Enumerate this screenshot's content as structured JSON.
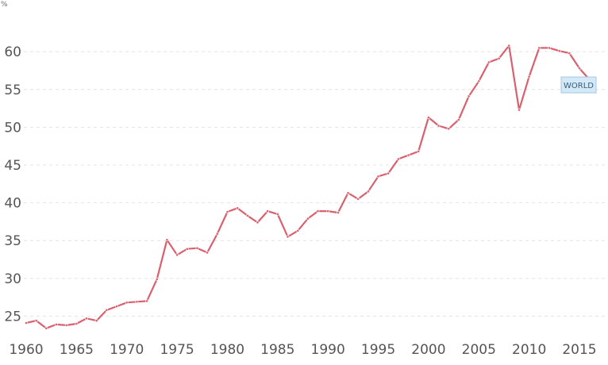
{
  "chart_data": {
    "type": "line",
    "title": "",
    "xlabel": "",
    "ylabel": "%",
    "xlim": [
      1960,
      2017
    ],
    "ylim": [
      22,
      66
    ],
    "grid": true,
    "x_ticks": [
      1960,
      1965,
      1970,
      1975,
      1980,
      1985,
      1990,
      1995,
      2000,
      2005,
      2010,
      2015
    ],
    "y_ticks": [
      25,
      30,
      35,
      40,
      45,
      50,
      55,
      60
    ],
    "x": [
      1960,
      1961,
      1962,
      1963,
      1964,
      1965,
      1966,
      1967,
      1968,
      1969,
      1970,
      1971,
      1972,
      1973,
      1974,
      1975,
      1976,
      1977,
      1978,
      1979,
      1980,
      1981,
      1982,
      1983,
      1984,
      1985,
      1986,
      1987,
      1988,
      1989,
      1990,
      1991,
      1992,
      1993,
      1994,
      1995,
      1996,
      1997,
      1998,
      1999,
      2000,
      2001,
      2002,
      2003,
      2004,
      2005,
      2006,
      2007,
      2008,
      2009,
      2010,
      2011,
      2012,
      2013,
      2014,
      2015,
      2016
    ],
    "series": [
      {
        "name": "WORLD",
        "color": "#d9606e",
        "values": [
          24.1,
          24.4,
          23.4,
          23.9,
          23.8,
          24.0,
          24.7,
          24.4,
          25.8,
          26.3,
          26.8,
          26.9,
          27.0,
          29.9,
          35.1,
          33.1,
          33.9,
          34.0,
          33.4,
          35.9,
          38.8,
          39.3,
          38.3,
          37.4,
          38.9,
          38.5,
          35.5,
          36.3,
          37.9,
          38.9,
          38.9,
          38.7,
          41.3,
          40.5,
          41.5,
          43.5,
          43.9,
          45.8,
          46.3,
          46.8,
          51.3,
          50.2,
          49.8,
          51.0,
          54.1,
          56.1,
          58.6,
          59.1,
          60.8,
          52.3,
          56.7,
          60.5,
          60.5,
          60.1,
          59.8,
          57.8,
          56.3
        ]
      }
    ],
    "legend": {
      "label": "WORLD",
      "placement": "right",
      "background": "#d4e9f7",
      "border": "#a6c8df",
      "text_color": "#3a5c7a"
    }
  }
}
